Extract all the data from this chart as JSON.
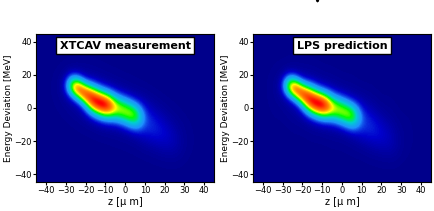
{
  "title1": "XTCAV measurement",
  "title2": "LPS prediction",
  "xlabel": "z [μ m]",
  "ylabel": "Energy Deviation [MeV]",
  "xlim": [
    -45,
    45
  ],
  "ylim": [
    -45,
    45
  ],
  "xticks": [
    -40,
    -30,
    -20,
    -10,
    0,
    10,
    20,
    30,
    40
  ],
  "yticks": [
    -40,
    -20,
    0,
    20,
    40
  ],
  "bg_color": "#00008B",
  "figsize": [
    4.35,
    2.11
  ],
  "dpi": 100
}
